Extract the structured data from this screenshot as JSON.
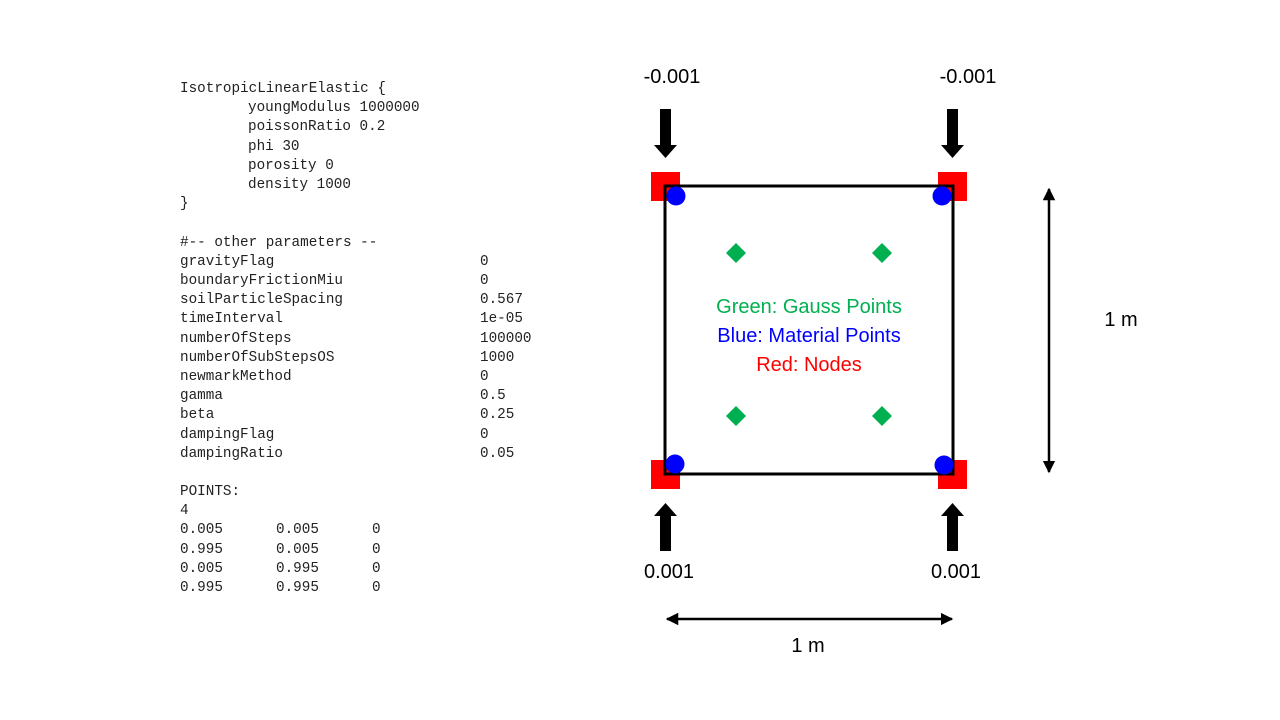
{
  "code": {
    "material_header": "IsotropicLinearElastic {",
    "material_props": [
      "youngModulus 1000000",
      "poissonRatio 0.2",
      "phi 30",
      "porosity 0",
      "density 1000"
    ],
    "material_close": "}",
    "params_comment": "#-- other parameters --",
    "params": [
      {
        "name": "gravityFlag",
        "value": "0"
      },
      {
        "name": "boundaryFrictionMiu",
        "value": "0"
      },
      {
        "name": "soilParticleSpacing",
        "value": "0.567"
      },
      {
        "name": "timeInterval",
        "value": "1e-05"
      },
      {
        "name": "numberOfSteps",
        "value": "100000"
      },
      {
        "name": "numberOfSubStepsOS",
        "value": "1000"
      },
      {
        "name": "newmarkMethod",
        "value": "0"
      },
      {
        "name": "gamma",
        "value": "0.5"
      },
      {
        "name": "beta",
        "value": "0.25"
      },
      {
        "name": "dampingFlag",
        "value": "0"
      },
      {
        "name": "dampingRatio",
        "value": "0.05"
      }
    ],
    "points_header": "POINTS:",
    "points_count": "4",
    "points": [
      [
        "0.005",
        "0.005",
        "0"
      ],
      [
        "0.995",
        "0.005",
        "0"
      ],
      [
        "0.005",
        "0.995",
        "0"
      ],
      [
        "0.995",
        "0.995",
        "0"
      ]
    ]
  },
  "diagram": {
    "load_top_left": "-0.001",
    "load_top_right": "-0.001",
    "load_bottom_left": "0.001",
    "load_bottom_right": "0.001",
    "dim_vertical": "1 m",
    "dim_horizontal": "1 m",
    "legend": {
      "gauss": "Green: Gauss Points",
      "material": "Blue: Material Points",
      "nodes": "Red: Nodes"
    },
    "colors": {
      "gauss": "#00b050",
      "material": "#0000ff",
      "nodes": "#ff0000",
      "arrows": "#000000"
    }
  }
}
